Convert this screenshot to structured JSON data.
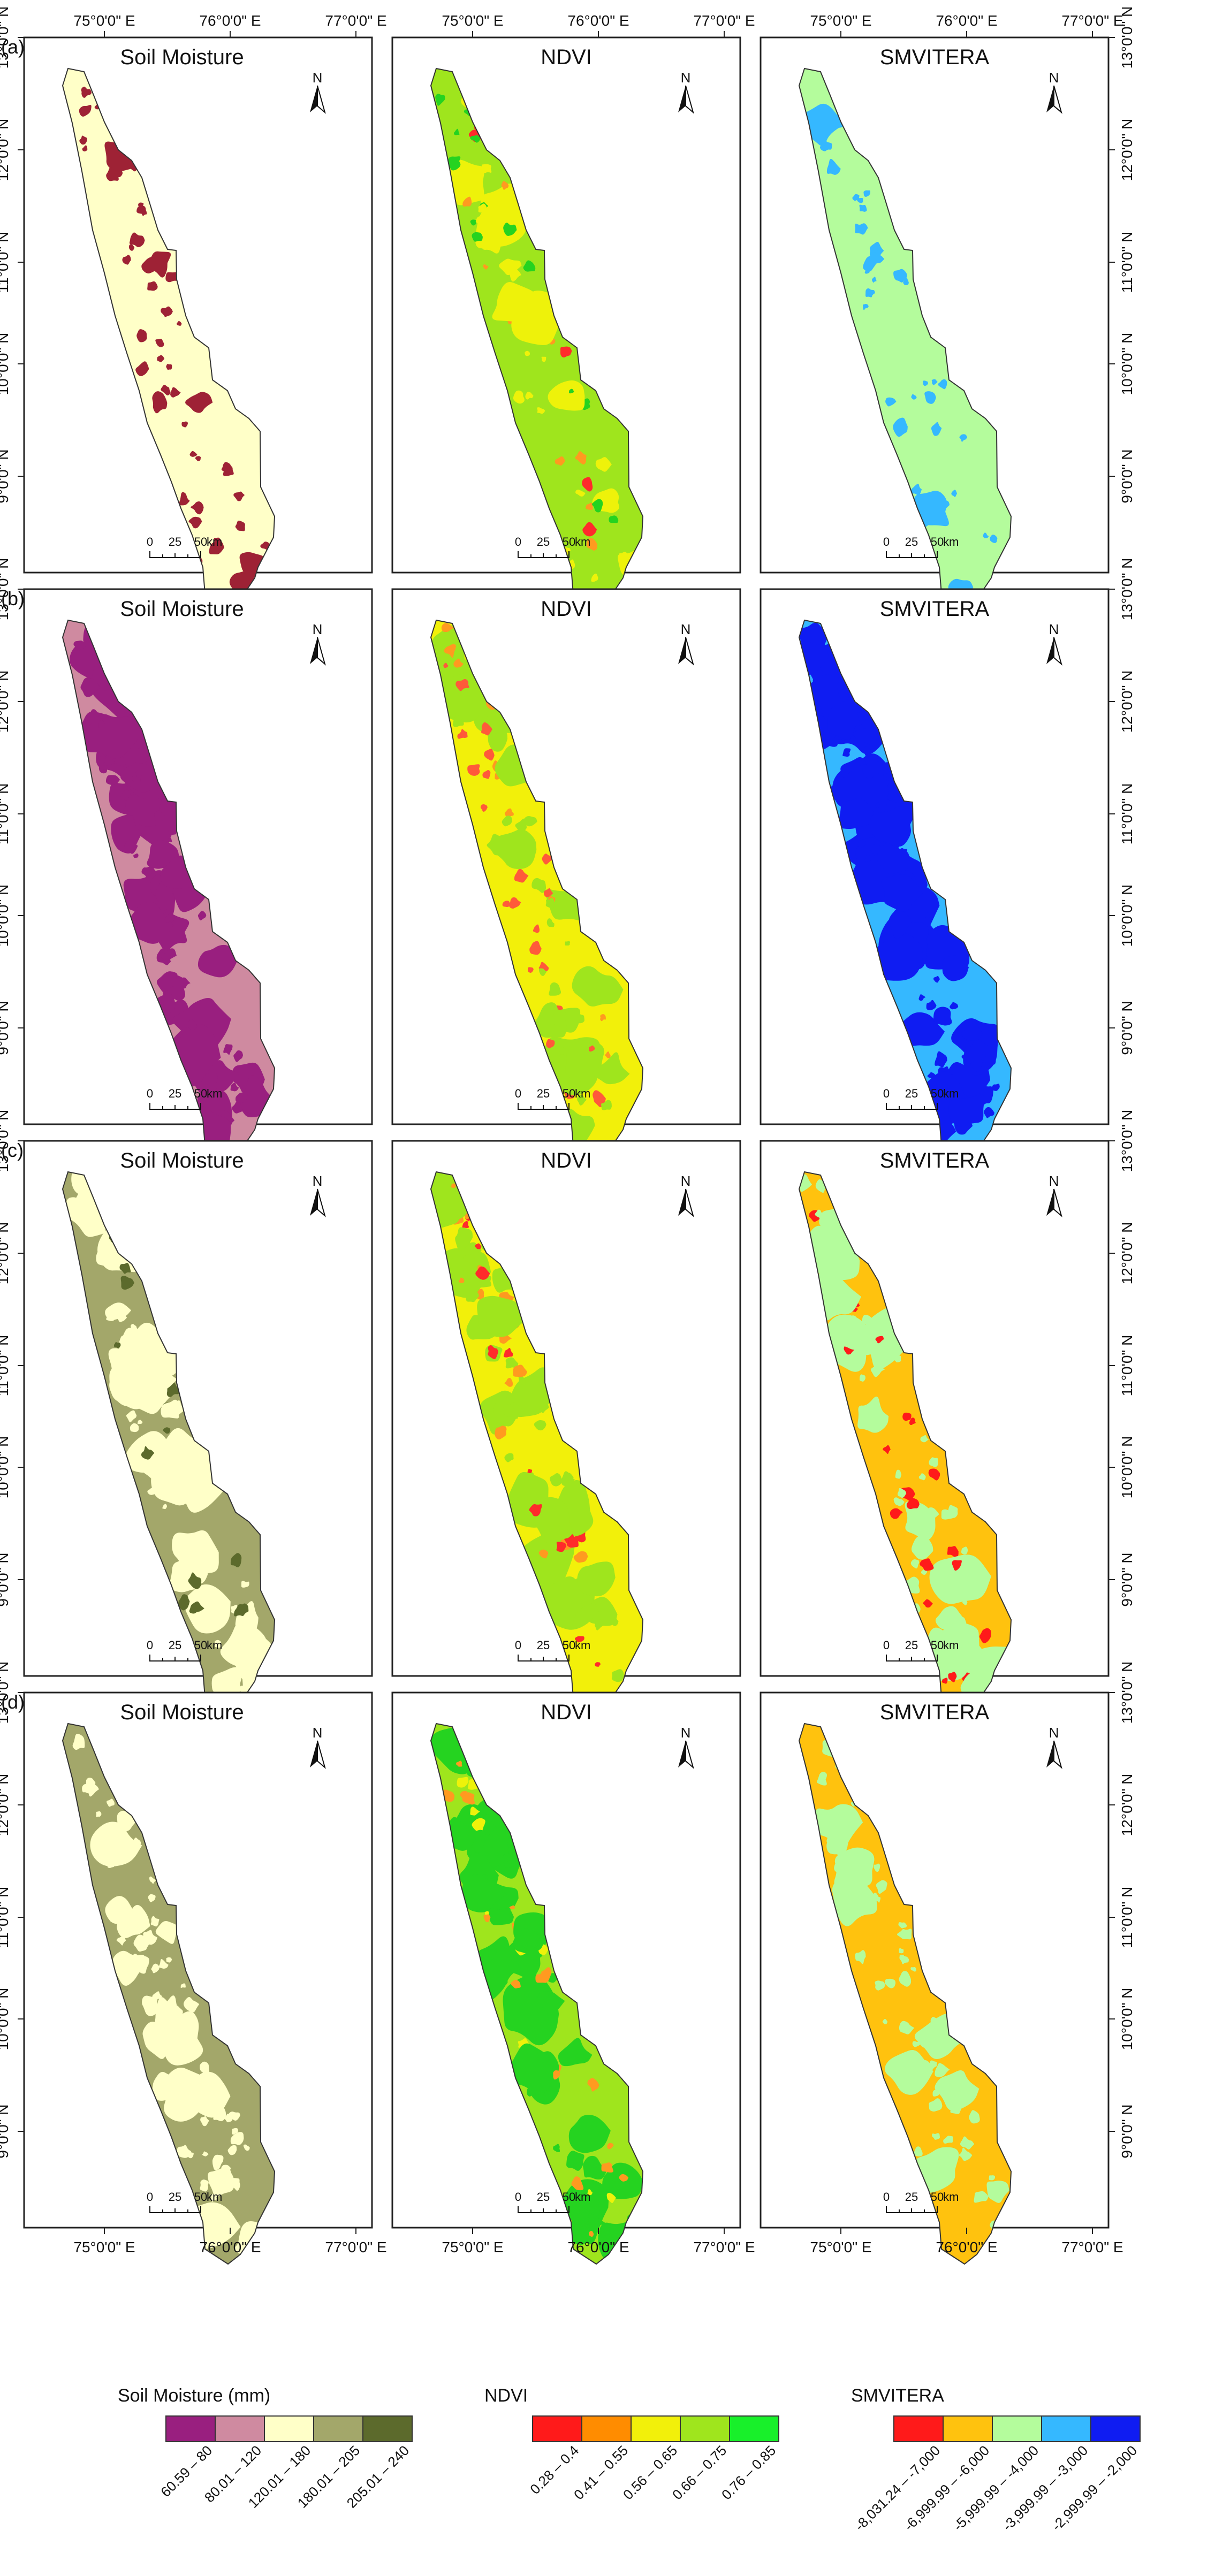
{
  "rows": [
    {
      "label": "(a)",
      "panels": [
        {
          "title": "Soil Moisture",
          "base": "#ffffc8",
          "patch": "#9e2235",
          "palette": [
            "#9e2235"
          ],
          "density": 0.1
        },
        {
          "title": "NDVI",
          "base": "#9fe51d",
          "patch": "#eef20a",
          "palette": [
            "#eef20a",
            "#ff9a20",
            "#25d320",
            "#ff2b2b"
          ],
          "density": 0.18
        },
        {
          "title": "SMVITERA",
          "base": "#b4fc9c",
          "patch": "#35b8ff",
          "palette": [
            "#35b8ff"
          ],
          "density": 0.05
        }
      ]
    },
    {
      "label": "(b)",
      "panels": [
        {
          "title": "Soil Moisture",
          "base": "#cf8aa0",
          "patch": "#991f7f",
          "palette": [
            "#991f7f"
          ],
          "density": 0.36
        },
        {
          "title": "NDVI",
          "base": "#f2f00a",
          "patch": "#9fe51d",
          "palette": [
            "#9fe51d",
            "#ff9a20",
            "#ff5a3a"
          ],
          "density": 0.28
        },
        {
          "title": "SMVITERA",
          "base": "#35b8ff",
          "patch": "#0f1cf2",
          "palette": [
            "#0f1cf2"
          ],
          "density": 0.5
        }
      ]
    },
    {
      "label": "(c)",
      "panels": [
        {
          "title": "Soil Moisture",
          "base": "#a3a76a",
          "patch": "#ffffc8",
          "palette": [
            "#ffffc8",
            "#5c6a2c"
          ],
          "density": 0.3
        },
        {
          "title": "NDVI",
          "base": "#f2f00a",
          "patch": "#9fe51d",
          "palette": [
            "#9fe51d",
            "#ff2b2b",
            "#ff9a20"
          ],
          "density": 0.33
        },
        {
          "title": "SMVITERA",
          "base": "#ffc20e",
          "patch": "#b4fc9c",
          "palette": [
            "#b4fc9c",
            "#ff1a1a"
          ],
          "density": 0.3
        }
      ]
    },
    {
      "label": "(d)",
      "panels": [
        {
          "title": "Soil Moisture",
          "base": "#a3a76a",
          "patch": "#ffffc8",
          "palette": [
            "#ffffc8"
          ],
          "density": 0.28
        },
        {
          "title": "NDVI",
          "base": "#9fe51d",
          "patch": "#25d320",
          "palette": [
            "#25d320",
            "#eef20a",
            "#ff9a20"
          ],
          "density": 0.3
        },
        {
          "title": "SMVITERA",
          "base": "#ffc20e",
          "patch": "#b4fc9c",
          "palette": [
            "#b4fc9c"
          ],
          "density": 0.18
        }
      ]
    }
  ],
  "axes": {
    "lon_labels": [
      "75°0'0\" E",
      "76°0'0\" E",
      "77°0'0\" E"
    ],
    "lat_labels": [
      "13°0'0\" N",
      "12°0'0\" N",
      "11°0'0\" N",
      "10°0'0\" N",
      "9°0'0\" N"
    ]
  },
  "north_label": "N",
  "scalebar": {
    "labels": [
      "0",
      "25",
      "50"
    ],
    "unit": "km"
  },
  "legends": [
    {
      "title": "Soil Moisture (mm)",
      "colors": [
        "#991f7f",
        "#cf8aa0",
        "#ffffc8",
        "#a3a76a",
        "#5c6a2c"
      ],
      "labels": [
        "60.59 – 80",
        "80.01 – 120",
        "120.01 – 180",
        "180.01 – 205",
        "205.01 – 240"
      ]
    },
    {
      "title": "NDVI",
      "colors": [
        "#ff1a1a",
        "#ff8c00",
        "#f2f00a",
        "#9fe51d",
        "#18f02a"
      ],
      "labels": [
        "0.28 – 0.4",
        "0.41 – 0.55",
        "0.56 – 0.65",
        "0.66 – 0.75",
        "0.76 – 0.85"
      ]
    },
    {
      "title": "SMVITERA",
      "colors": [
        "#ff1a1a",
        "#ffc20e",
        "#b4fc9c",
        "#35b8ff",
        "#0f1cf2"
      ],
      "labels": [
        "-8,031.24 – -7,000",
        "-6,999.99 – -6,000",
        "-5,999.99 – -4,000",
        "-3,999.99 – -3,000",
        "-2,999.99 – -2,000"
      ]
    }
  ]
}
